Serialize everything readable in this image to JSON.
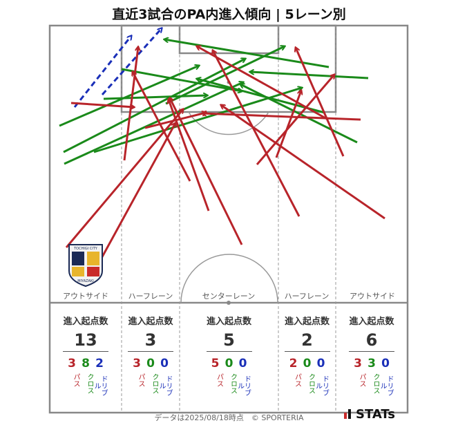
{
  "title": "直近3試合のPA内進入傾向 | 5レーン別",
  "lanes": [
    {
      "label": "アウトサイド",
      "header": "進入起点数",
      "total": "13",
      "pass": "3",
      "cross": "8",
      "dribble": "2"
    },
    {
      "label": "ハーフレーン",
      "header": "進入起点数",
      "total": "3",
      "pass": "3",
      "cross": "0",
      "dribble": "0"
    },
    {
      "label": "センターレーン",
      "header": "進入起点数",
      "total": "5",
      "pass": "5",
      "cross": "0",
      "dribble": "0"
    },
    {
      "label": "ハーフレーン",
      "header": "進入起点数",
      "total": "2",
      "pass": "2",
      "cross": "0",
      "dribble": "0"
    },
    {
      "label": "アウトサイド",
      "header": "進入起点数",
      "total": "6",
      "pass": "3",
      "cross": "3",
      "dribble": "0"
    }
  ],
  "legend": {
    "pass": "パス",
    "cross": "クロス",
    "dribble": "ドリブル"
  },
  "colors": {
    "pass": "#b8242a",
    "cross": "#1a8a1a",
    "dribble": "#1a2fb8"
  },
  "badge": {
    "top_text": "TOCHIGI CITY",
    "bottom_text": "MIYAZAKI"
  },
  "footer": "データは2025/08/18時点　© SPORTERIA",
  "brand": "STATs"
}
